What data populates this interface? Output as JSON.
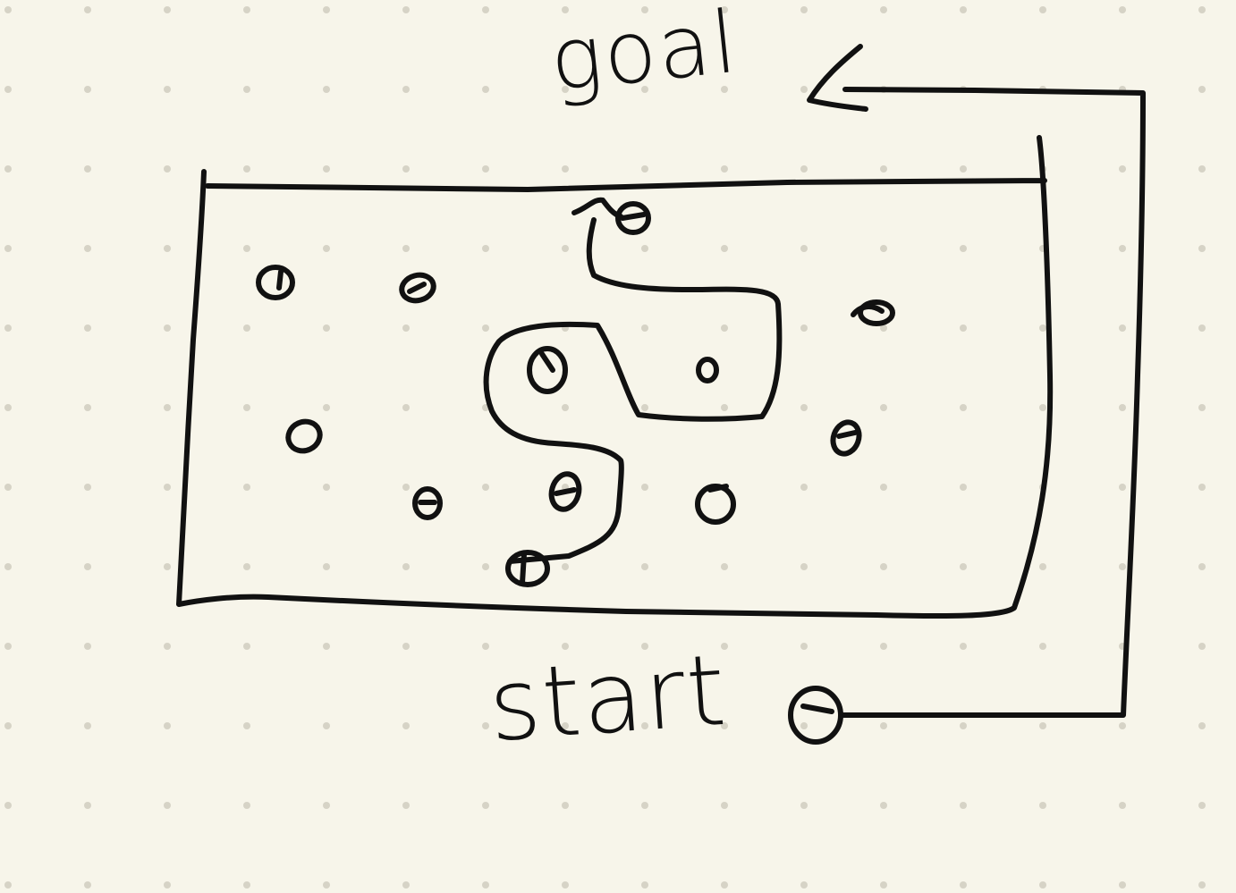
{
  "labels": {
    "goal": "goal",
    "start": "start"
  },
  "colors": {
    "paper": "#f7f5ea",
    "ink": "#111111",
    "grid_dot": "#d6d3c6"
  },
  "diagram": {
    "background": "dot-grid",
    "obstacle_count": 13,
    "elements": [
      "obstacle-field-rectangle",
      "outer-route-arrow",
      "inner-winding-path",
      "start-marker"
    ]
  }
}
